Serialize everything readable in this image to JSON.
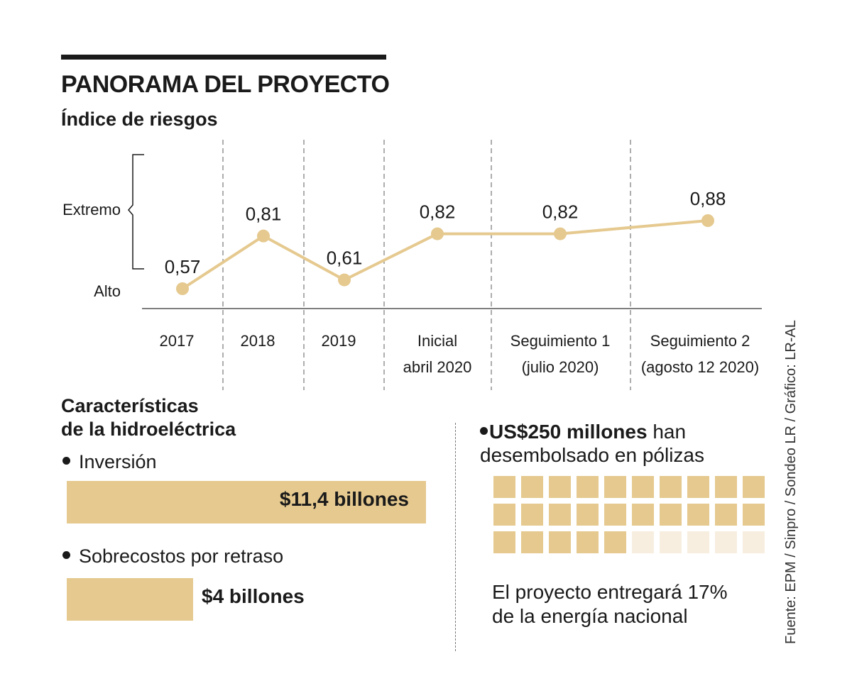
{
  "header": {
    "title": "PANORAMA DEL PROYECTO",
    "subtitle": "Índice de riesgos"
  },
  "colors": {
    "accent": "#e5c98f",
    "accent_light": "#f7eee0",
    "text": "#1a1a1a"
  },
  "chart_data": {
    "type": "line",
    "title": "Índice de riesgos",
    "y_bands": [
      "Extremo",
      "Alto"
    ],
    "categories": [
      [
        "2017"
      ],
      [
        "2018"
      ],
      [
        "2019"
      ],
      [
        "Inicial",
        "abril 2020"
      ],
      [
        "Seguimiento 1",
        "(julio 2020)"
      ],
      [
        "Seguimiento 2",
        "(agosto 12 2020)"
      ]
    ],
    "series": [
      {
        "name": "Índice de riesgos",
        "values": [
          0.57,
          0.81,
          0.61,
          0.82,
          0.82,
          0.88
        ],
        "labels": [
          "0,57",
          "0,81",
          "0,61",
          "0,82",
          "0,82",
          "0,88"
        ]
      }
    ],
    "ylim": [
      0.4,
      1.0
    ]
  },
  "features": {
    "title_line1": "Características",
    "title_line2": "de la hidroeléctrica",
    "investment_label": "Inversión",
    "investment_value": "$11,4 billones",
    "investment_amount": 11.4,
    "overrun_label": "Sobrecostos por retraso",
    "overrun_value": "$4 billones",
    "overrun_amount": 4
  },
  "policies": {
    "amount": "US$250 millones",
    "text_line1": " han",
    "text_line2": "desembolsado en pólizas",
    "filled_squares": 25,
    "total_squares": 30
  },
  "note": {
    "line1": "El proyecto entregará 17%",
    "line2": "de la energía nacional"
  },
  "source": "Fuente: EPM / Sinpro / Sondeo LR / Gráfico: LR-AL"
}
